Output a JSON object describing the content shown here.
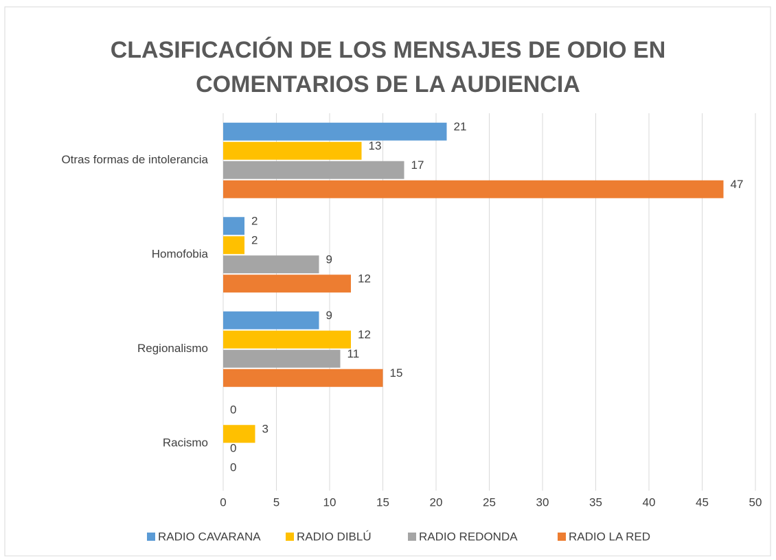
{
  "chart_data": {
    "type": "hbar",
    "title_lines": [
      "CLASIFICACIÓN DE LOS MENSAJES DE ODIO EN",
      "COMENTARIOS DE LA AUDIENCIA"
    ],
    "categories": [
      "Otras formas de intolerancia",
      "Homofobia",
      "Regionalismo",
      "Racismo"
    ],
    "series": [
      {
        "name": "RADIO CAVARANA",
        "color": "#5b9bd5",
        "values": [
          21,
          2,
          9,
          0
        ]
      },
      {
        "name": "RADIO DIBLÚ",
        "color": "#ffc000",
        "values": [
          13,
          2,
          12,
          3
        ]
      },
      {
        "name": "RADIO REDONDA",
        "color": "#a5a5a5",
        "values": [
          17,
          9,
          11,
          0
        ]
      },
      {
        "name": "RADIO LA RED",
        "color": "#ed7d31",
        "values": [
          47,
          12,
          15,
          0
        ]
      }
    ],
    "xlim": [
      0,
      50
    ],
    "xticks": [
      0,
      5,
      10,
      15,
      20,
      25,
      30,
      35,
      40,
      45,
      50
    ],
    "grid": true,
    "legend": "bottom"
  }
}
